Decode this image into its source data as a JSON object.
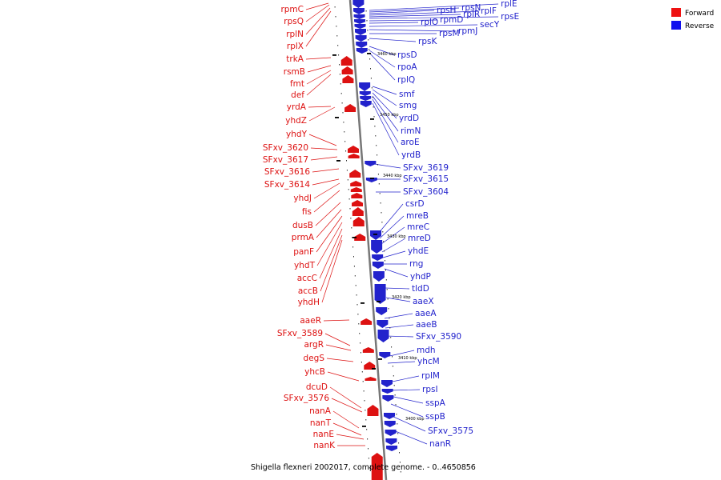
{
  "caption": "Shigella flexneri 2002017, complete genome. - 0..4650856",
  "legend": [
    {
      "label": "Forward",
      "color": "#ee1111"
    },
    {
      "label": "Reverse",
      "color": "#1111ee"
    }
  ],
  "colors": {
    "forward": "#dd1111",
    "reverse": "#2222cc",
    "axis": "#777777"
  },
  "scale_labels": [
    "3460 kbp",
    "3450 kbp",
    "3440 kbp",
    "3430 kbp",
    "3420 kbp",
    "3410 kbp",
    "3400 kbp"
  ],
  "left_genes": [
    "rpmC",
    "rpsQ",
    "rplN",
    "rplX",
    "trkA",
    "rsmB",
    "fmt",
    "def",
    "yrdA",
    "yhdZ",
    "yhdY",
    "SFxv_3620",
    "SFxv_3617",
    "SFxv_3616",
    "SFxv_3614",
    "yhdJ",
    "fis",
    "dusB",
    "prmA",
    "panF",
    "yhdT",
    "accC",
    "accB",
    "yhdH",
    "aaeR",
    "SFxv_3589",
    "argR",
    "degS",
    "yhcB",
    "dcuD",
    "SFxv_3576",
    "nanA",
    "nanT",
    "nanE",
    "nanK"
  ],
  "right_genes": [
    "rplE",
    "rpsN",
    "rpsH",
    "rplF",
    "rplR",
    "rpsE",
    "rpmD",
    "rplO",
    "secY",
    "rpmJ",
    "rpsM",
    "rpsK",
    "rpsD",
    "rpoA",
    "rplQ",
    "smf",
    "smg",
    "yrdD",
    "rimN",
    "aroE",
    "yrdB",
    "SFxv_3619",
    "SFxv_3615",
    "SFxv_3604",
    "csrD",
    "mreB",
    "mreC",
    "mreD",
    "yhdE",
    "rng",
    "yhdP",
    "tldD",
    "aaeX",
    "aaeA",
    "aaeB",
    "SFxv_3590",
    "mdh",
    "yhcM",
    "rplM",
    "rpsI",
    "sspA",
    "sspB",
    "SFxv_3575",
    "nanR"
  ]
}
